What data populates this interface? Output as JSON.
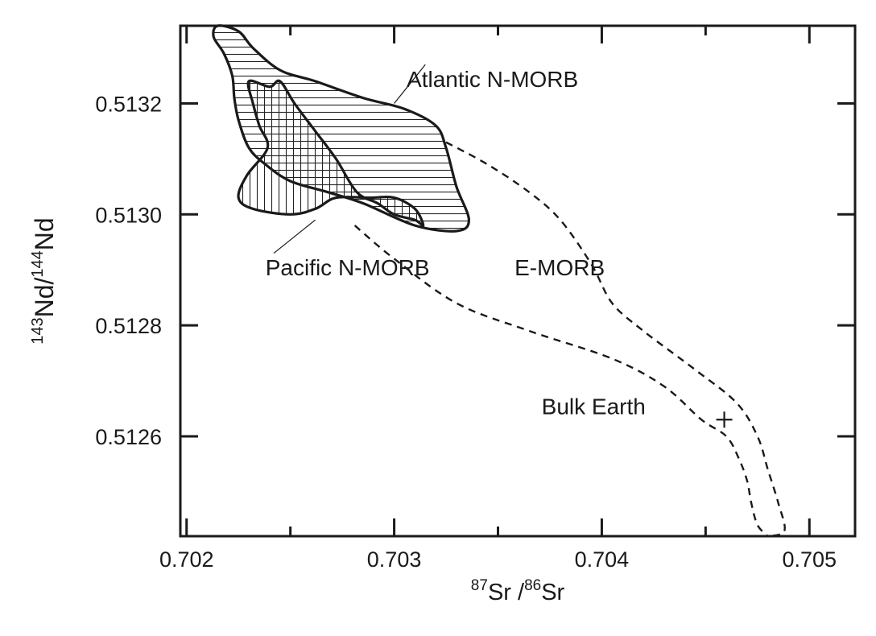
{
  "chart_data": {
    "type": "area",
    "xlabel": {
      "sup1": "87",
      "base1": "Sr /",
      "sup2": "86",
      "base2": "Sr"
    },
    "ylabel": {
      "sup1": "143",
      "base1": "Nd/",
      "sup2": "144",
      "base2": "Nd"
    },
    "xlim": [
      0.70197,
      0.70522
    ],
    "ylim": [
      0.51242,
      0.51334
    ],
    "x_ticks": [
      {
        "value": 0.702,
        "label": "0.702"
      },
      {
        "value": 0.703,
        "label": "0.703"
      },
      {
        "value": 0.704,
        "label": "0.704"
      },
      {
        "value": 0.705,
        "label": "0.705"
      }
    ],
    "x_minor_ticks": [
      0.7025,
      0.7035,
      0.7045
    ],
    "y_ticks": [
      {
        "value": 0.5126,
        "label": "0.5126"
      },
      {
        "value": 0.5128,
        "label": "0.5128"
      },
      {
        "value": 0.513,
        "label": "0.5130"
      },
      {
        "value": 0.5132,
        "label": "0.5132"
      }
    ],
    "grid": false,
    "series": [
      {
        "name": "Atlantic N-MORB",
        "style": "horizontal-hatch",
        "polygon": [
          [
            0.70215,
            0.51334
          ],
          [
            0.70225,
            0.51333
          ],
          [
            0.70232,
            0.5133
          ],
          [
            0.70245,
            0.51326
          ],
          [
            0.70262,
            0.51324
          ],
          [
            0.70285,
            0.51321
          ],
          [
            0.70305,
            0.51319
          ],
          [
            0.7032,
            0.51316
          ],
          [
            0.70325,
            0.51312
          ],
          [
            0.7033,
            0.51305
          ],
          [
            0.70336,
            0.51299
          ],
          [
            0.7033,
            0.51297
          ],
          [
            0.7031,
            0.51298
          ],
          [
            0.70285,
            0.51302
          ],
          [
            0.70268,
            0.51304
          ],
          [
            0.7025,
            0.51306
          ],
          [
            0.70238,
            0.51309
          ],
          [
            0.7023,
            0.51312
          ],
          [
            0.70225,
            0.51317
          ],
          [
            0.70223,
            0.51321
          ],
          [
            0.70222,
            0.51325
          ],
          [
            0.70218,
            0.51329
          ],
          [
            0.70213,
            0.51332
          ]
        ]
      },
      {
        "name": "Pacific N-MORB",
        "style": "vertical-hatch",
        "polygon": [
          [
            0.70232,
            0.5132
          ],
          [
            0.7023,
            0.51324
          ],
          [
            0.7024,
            0.51323
          ],
          [
            0.70245,
            0.51324
          ],
          [
            0.70252,
            0.5132
          ],
          [
            0.70262,
            0.51315
          ],
          [
            0.70272,
            0.5131
          ],
          [
            0.70282,
            0.51304
          ],
          [
            0.70292,
            0.51302
          ],
          [
            0.703,
            0.513
          ],
          [
            0.7031,
            0.51299
          ],
          [
            0.70314,
            0.51298
          ],
          [
            0.7031,
            0.51301
          ],
          [
            0.703,
            0.51303
          ],
          [
            0.70288,
            0.51303
          ],
          [
            0.70272,
            0.51303
          ],
          [
            0.70262,
            0.51301
          ],
          [
            0.7025,
            0.513
          ],
          [
            0.70232,
            0.51301
          ],
          [
            0.70225,
            0.51303
          ],
          [
            0.70229,
            0.51307
          ],
          [
            0.70239,
            0.51312
          ],
          [
            0.70235,
            0.51316
          ]
        ]
      },
      {
        "name": "E-MORB",
        "style": "dashed-outline",
        "upper_edge": [
          [
            0.70325,
            0.51313
          ],
          [
            0.70345,
            0.51309
          ],
          [
            0.70365,
            0.51304
          ],
          [
            0.7038,
            0.51299
          ],
          [
            0.70395,
            0.51291
          ],
          [
            0.70405,
            0.51284
          ],
          [
            0.7042,
            0.51279
          ],
          [
            0.70445,
            0.51272
          ],
          [
            0.70465,
            0.51266
          ],
          [
            0.70475,
            0.5126
          ],
          [
            0.7048,
            0.51254
          ],
          [
            0.70485,
            0.51248
          ],
          [
            0.70488,
            0.51243
          ],
          [
            0.7048,
            0.51242
          ]
        ],
        "lower_edge": [
          [
            0.70281,
            0.51298
          ],
          [
            0.703,
            0.51292
          ],
          [
            0.7033,
            0.51284
          ],
          [
            0.70365,
            0.51279
          ],
          [
            0.70405,
            0.51274
          ],
          [
            0.7043,
            0.51269
          ],
          [
            0.70448,
            0.51263
          ],
          [
            0.7046,
            0.5126
          ],
          [
            0.70466,
            0.51256
          ],
          [
            0.7047,
            0.51252
          ],
          [
            0.70472,
            0.51248
          ],
          [
            0.70475,
            0.51244
          ],
          [
            0.7048,
            0.51242
          ]
        ]
      }
    ],
    "annotations": [
      {
        "text": "Atlantic N-MORB",
        "x": 0.70306,
        "y": 0.51323
      },
      {
        "text": "Pacific N-MORB",
        "x": 0.70238,
        "y": 0.51289
      },
      {
        "text": "E-MORB",
        "x": 0.70358,
        "y": 0.51289
      },
      {
        "text": "Bulk Earth",
        "x": 0.70371,
        "y": 0.51264
      }
    ],
    "leaders": [
      {
        "from": [
          0.703,
          0.5132
        ],
        "to": [
          0.70315,
          0.51327
        ]
      },
      {
        "from": [
          0.70242,
          0.51293
        ],
        "to": [
          0.70262,
          0.51299
        ]
      }
    ],
    "markers": [
      {
        "name": "Bulk Earth",
        "symbol": "+",
        "x": 0.70459,
        "y": 0.51263
      }
    ]
  }
}
